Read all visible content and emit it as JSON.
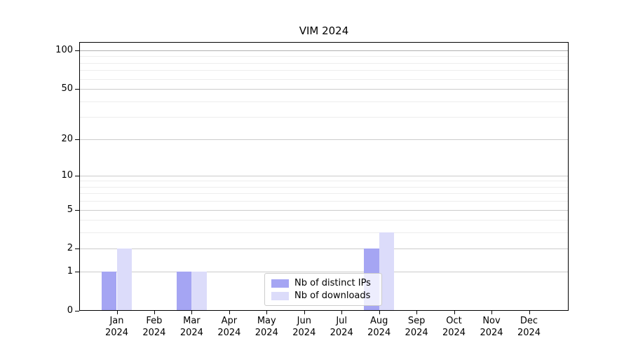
{
  "title": "VIM 2024",
  "legend": {
    "items": [
      {
        "label": "Nb of distinct IPs",
        "color": "#a5a5f3"
      },
      {
        "label": "Nb of downloads",
        "color": "#dcdcfa"
      }
    ]
  },
  "chart_data": {
    "type": "bar",
    "title": "VIM 2024",
    "categories": [
      "Jan 2024",
      "Feb 2024",
      "Mar 2024",
      "Apr 2024",
      "May 2024",
      "Jun 2024",
      "Jul 2024",
      "Aug 2024",
      "Sep 2024",
      "Oct 2024",
      "Nov 2024",
      "Dec 2024"
    ],
    "series": [
      {
        "name": "Nb of distinct IPs",
        "color": "#a5a5f3",
        "values": [
          1,
          0,
          1,
          0,
          0,
          0,
          0,
          2,
          0,
          0,
          0,
          0
        ]
      },
      {
        "name": "Nb of downloads",
        "color": "#dcdcfa",
        "values": [
          2,
          0,
          1,
          0,
          0,
          0,
          0,
          3,
          0,
          0,
          0,
          0
        ]
      }
    ],
    "xlabel": "",
    "ylabel": "",
    "yscale": "log10(1+y)",
    "ylim": [
      0,
      115
    ],
    "y_major_ticks": [
      0,
      1,
      2,
      5,
      10,
      20,
      50,
      100
    ],
    "y_minor_ticks": [
      3,
      4,
      6,
      7,
      8,
      9,
      30,
      40,
      60,
      70,
      80,
      90
    ],
    "grid": true,
    "legend_position": "lower center"
  }
}
